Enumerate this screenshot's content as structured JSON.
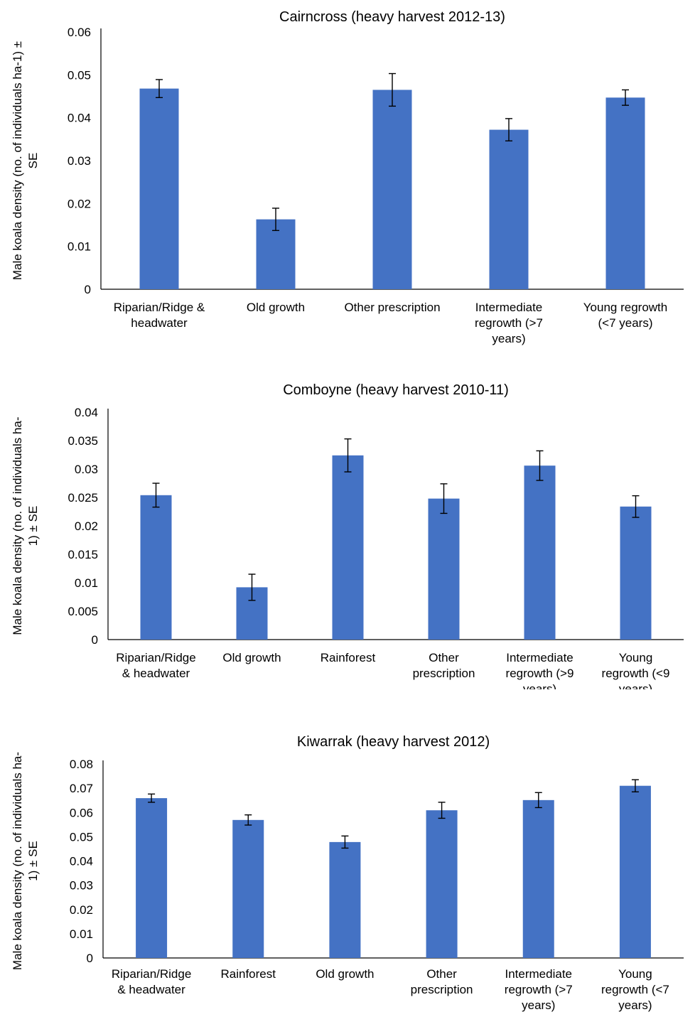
{
  "chart_data": [
    {
      "type": "bar",
      "title": "Cairncross (heavy harvest 2012-13)",
      "ylabel": [
        "Male koala density (no. of individuals ha-1) ±",
        "SE"
      ],
      "ylim": [
        0,
        0.06
      ],
      "yticks": [
        "0",
        "0.01",
        "0.02",
        "0.03",
        "0.04",
        "0.05",
        "0.06"
      ],
      "yticks_values": [
        0,
        0.01,
        0.02,
        0.03,
        0.04,
        0.05,
        0.06
      ],
      "categories": [
        [
          "Riparian/Ridge &",
          "headwater"
        ],
        [
          "Old growth"
        ],
        [
          "Other prescription"
        ],
        [
          "Intermediate",
          "regrowth (>7",
          "years)"
        ],
        [
          "Young regrowth",
          "(<7 years)"
        ]
      ],
      "values": [
        0.0468,
        0.0163,
        0.0465,
        0.0372,
        0.0447
      ],
      "errors": [
        0.0021,
        0.0026,
        0.0038,
        0.0026,
        0.0018
      ],
      "grid": false,
      "bar_color": "#4472c4"
    },
    {
      "type": "bar",
      "title": "Comboyne (heavy harvest 2010-11)",
      "ylabel": [
        "Male koala density (no. of individuals ha-",
        "1) ± SE"
      ],
      "ylim": [
        0,
        0.04
      ],
      "yticks": [
        "0",
        "0.005",
        "0.01",
        "0.015",
        "0.02",
        "0.025",
        "0.03",
        "0.035",
        "0.04"
      ],
      "yticks_values": [
        0,
        0.005,
        0.01,
        0.015,
        0.02,
        0.025,
        0.03,
        0.035,
        0.04
      ],
      "categories": [
        [
          "Riparian/Ridge",
          "& headwater"
        ],
        [
          "Old growth"
        ],
        [
          "Rainforest"
        ],
        [
          "Other",
          "prescription"
        ],
        [
          "Intermediate",
          "regrowth (>9",
          "years)"
        ],
        [
          "Young",
          "regrowth (<9",
          "years)"
        ]
      ],
      "values": [
        0.0254,
        0.0092,
        0.0324,
        0.0248,
        0.0306,
        0.0234
      ],
      "errors": [
        0.0021,
        0.0023,
        0.0029,
        0.0026,
        0.0026,
        0.0019
      ],
      "grid": false,
      "bar_color": "#4472c4"
    },
    {
      "type": "bar",
      "title": "Kiwarrak (heavy harvest 2012)",
      "ylabel": [
        "Male koala density (no. of individuals ha-",
        "1) ± SE"
      ],
      "ylim": [
        0,
        0.08
      ],
      "yticks": [
        "0",
        "0.01",
        "0.02",
        "0.03",
        "0.04",
        "0.05",
        "0.06",
        "0.07",
        "0.08"
      ],
      "yticks_values": [
        0,
        0.01,
        0.02,
        0.03,
        0.04,
        0.05,
        0.06,
        0.07,
        0.08
      ],
      "categories": [
        [
          "Riparian/Ridge",
          "& headwater"
        ],
        [
          "Rainforest"
        ],
        [
          "Old growth"
        ],
        [
          "Other",
          "prescription"
        ],
        [
          "Intermediate",
          "regrowth (>7",
          "years)"
        ],
        [
          "Young",
          "regrowth (<7",
          "years)"
        ]
      ],
      "values": [
        0.0659,
        0.0569,
        0.0478,
        0.0609,
        0.0651,
        0.071
      ],
      "errors": [
        0.0017,
        0.0021,
        0.0025,
        0.0033,
        0.0031,
        0.0025
      ],
      "grid": false,
      "bar_color": "#4472c4"
    }
  ]
}
